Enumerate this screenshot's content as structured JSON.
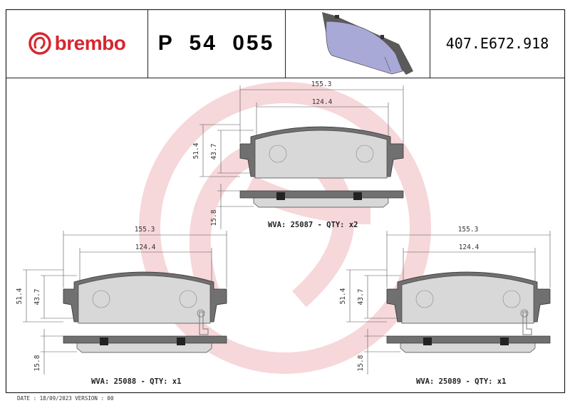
{
  "header": {
    "brand": "brembo",
    "part_number": "P 54 055",
    "reference_code": "407.E672.918"
  },
  "drawings": [
    {
      "width_overall": "155.3",
      "width_friction": "124.4",
      "height_overall": "51.4",
      "height_friction": "43.7",
      "thickness": "15.8",
      "label": "WVA: 25087 - QTY: x2"
    },
    {
      "width_overall": "155.3",
      "width_friction": "124.4",
      "height_overall": "51.4",
      "height_friction": "43.7",
      "thickness": "15.8",
      "label": "WVA: 25088 - QTY: x1"
    },
    {
      "width_overall": "155.3",
      "width_friction": "124.4",
      "height_overall": "51.4",
      "height_friction": "43.7",
      "thickness": "15.8",
      "label": "WVA: 25089 - QTY: x1"
    }
  ],
  "footer": {
    "text": "DATE : 18/09/2023 VERSION : 00"
  },
  "colors": {
    "brand_red": "#d7262e",
    "watermark": "#f6d3d6",
    "backplate": "#6e6e6e",
    "friction": "#d4d4d4",
    "pad_3d": "#a9a9d8"
  }
}
